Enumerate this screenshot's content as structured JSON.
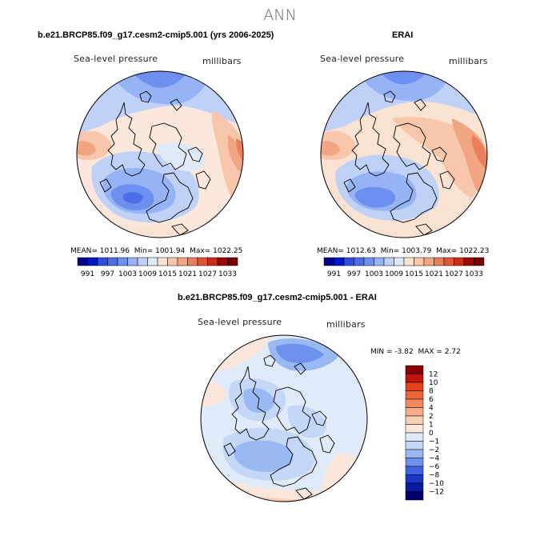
{
  "page": {
    "title": "ANN"
  },
  "panels": [
    {
      "title": "b.e21.BRCP85.f09_g17.cesm2-cmip5.001 (yrs 2006-2025)",
      "variable": "Sea-level pressure",
      "units": "millibars",
      "stats": {
        "mean_label": "MEAN=",
        "mean": "1011.96",
        "min_label": "Min=",
        "min": "1001.94",
        "max_label": "Max=",
        "max": "1022.25"
      },
      "colorbar_labels": [
        "991",
        "997",
        "1003",
        "1009",
        "1015",
        "1021",
        "1027",
        "1033"
      ]
    },
    {
      "title": "ERAI",
      "variable": "Sea-level pressure",
      "units": "millibars",
      "stats": {
        "mean_label": "MEAN=",
        "mean": "1012.63",
        "min_label": "Min=",
        "min": "1003.79",
        "max_label": "Max=",
        "max": "1022.23"
      },
      "colorbar_labels": [
        "991",
        "997",
        "1003",
        "1009",
        "1015",
        "1021",
        "1027",
        "1033"
      ]
    }
  ],
  "difference": {
    "title": "b.e21.BRCP85.f09_g17.cesm2-cmip5.001 - ERAI",
    "variable": "Sea-level pressure",
    "units": "millibars",
    "stats": {
      "min_label": "MIN =",
      "min": "-3.82",
      "max_label": "MAX =",
      "max": "2.72"
    },
    "colorbar_labels": [
      "12",
      "10",
      "8",
      "6",
      "4",
      "2",
      "1",
      "0",
      "−1",
      "−2",
      "−4",
      "−6",
      "−8",
      "−10",
      "−12"
    ]
  },
  "colors": {
    "full_field_scale": [
      "#00008b",
      "#0018c4",
      "#2d4fe0",
      "#4a6ee8",
      "#6d8ff0",
      "#96b3f5",
      "#bfd1f7",
      "#dfe9f8",
      "#fbe3d3",
      "#f8c6aa",
      "#f1a583",
      "#ea7f5c",
      "#e05535",
      "#cc2d18",
      "#9e0a04",
      "#780000"
    ],
    "diff_scale": [
      "#8b0000",
      "#c0140c",
      "#e8401a",
      "#f0643a",
      "#f38862",
      "#f6ad8a",
      "#f9cfb4",
      "#fbe7dc",
      "#e0ebfa",
      "#c4d7f6",
      "#9ab8f2",
      "#6d91ec",
      "#3f63e3",
      "#1a36c8",
      "#0a1a9e",
      "#00006e"
    ],
    "land_outline": "#000000"
  }
}
